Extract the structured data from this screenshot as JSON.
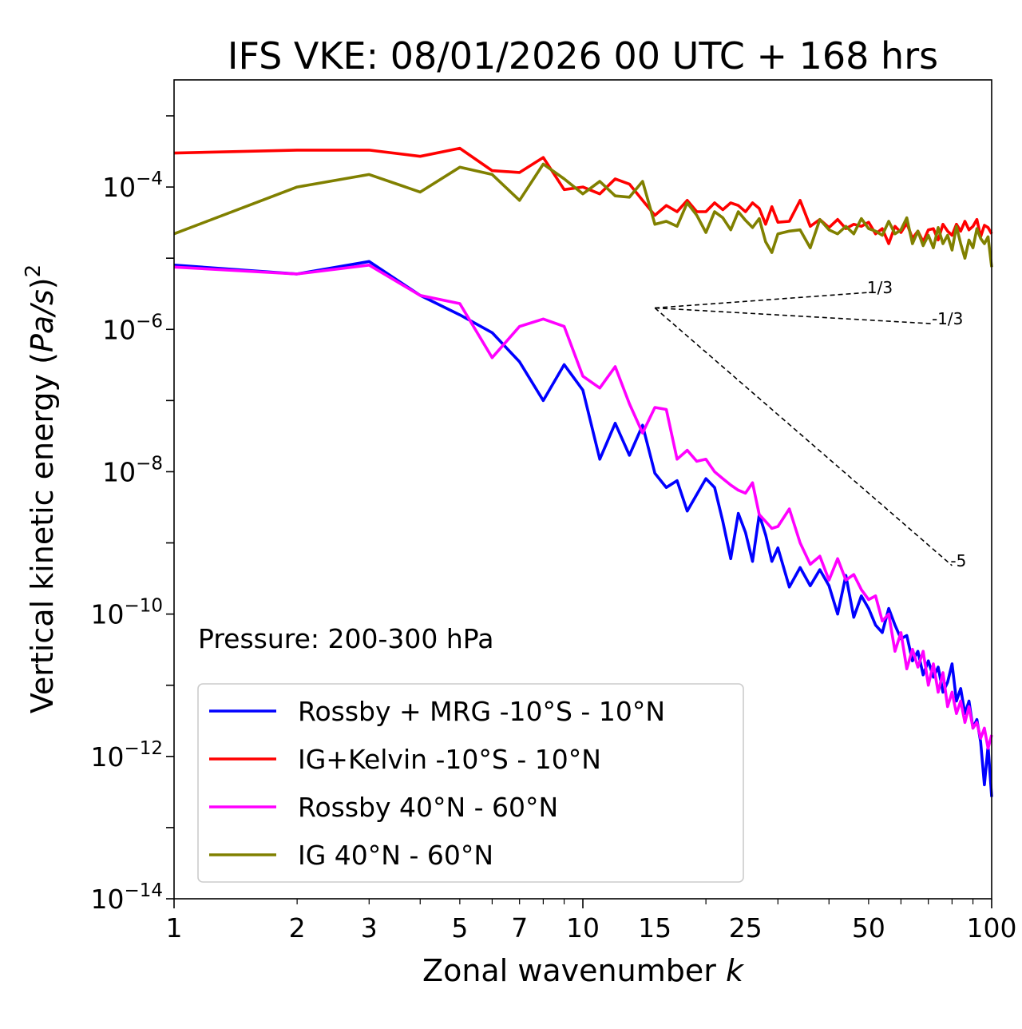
{
  "chart_data": {
    "type": "line",
    "title": "IFS VKE: 08/01/2026 00 UTC + 168 hrs",
    "xlabel_text": "Zonal wavenumber ",
    "xlabel_var": "k",
    "ylabel_text": "Vertical kinetic energy (",
    "ylabel_var": "Pa/s",
    "ylabel_close": ")",
    "ylabel_exp": "2",
    "xscale": "log",
    "yscale": "log",
    "xlim": [
      1,
      100
    ],
    "ylim": [
      1e-14,
      0.0032
    ],
    "x_ticks": [
      {
        "value": 1,
        "label": "1"
      },
      {
        "value": 2,
        "label": "2"
      },
      {
        "value": 3,
        "label": "3"
      },
      {
        "value": 5,
        "label": "5"
      },
      {
        "value": 7,
        "label": "7"
      },
      {
        "value": 10,
        "label": "10"
      },
      {
        "value": 15,
        "label": "15"
      },
      {
        "value": 25,
        "label": "25"
      },
      {
        "value": 50,
        "label": "50"
      },
      {
        "value": 100,
        "label": "100"
      }
    ],
    "y_ticks": [
      {
        "value": 0.0001,
        "base": "10",
        "exp": "−4"
      },
      {
        "value": 1e-06,
        "base": "10",
        "exp": "−6"
      },
      {
        "value": 1e-08,
        "base": "10",
        "exp": "−8"
      },
      {
        "value": 1e-10,
        "base": "10",
        "exp": "−10"
      },
      {
        "value": 1e-12,
        "base": "10",
        "exp": "−12"
      },
      {
        "value": 1e-14,
        "base": "10",
        "exp": "−14"
      }
    ],
    "annotation": "Pressure: 200-300 hPa",
    "legend_position": "lower-left",
    "series": [
      {
        "name": "Rossby + MRG -10°S - 10°N",
        "color": "#0000ff",
        "x": [
          1,
          2,
          3,
          4,
          5,
          6,
          7,
          8,
          9,
          10,
          11,
          12,
          13,
          14,
          15,
          16,
          17,
          18,
          19,
          20,
          21,
          22,
          23,
          24,
          25,
          26,
          27,
          28,
          29,
          30,
          32,
          34,
          36,
          38,
          40,
          42,
          44,
          46,
          48,
          50,
          52,
          54,
          56,
          58,
          60,
          62,
          64,
          66,
          68,
          70,
          72,
          74,
          76,
          78,
          80,
          82,
          84,
          86,
          88,
          90,
          92,
          94,
          96,
          98,
          100
        ],
        "y": [
          8e-06,
          6e-06,
          9e-06,
          3e-06,
          1.6e-06,
          9e-07,
          3.5e-07,
          1e-07,
          3.2e-07,
          1.4e-07,
          1.5e-08,
          4.8e-08,
          1.7e-08,
          4.5e-08,
          9.5e-09,
          6e-09,
          7.5e-09,
          2.8e-09,
          4.8e-09,
          8e-09,
          6e-09,
          2e-09,
          6e-10,
          2.6e-09,
          1.4e-09,
          5.5e-10,
          2.5e-09,
          1.3e-09,
          5.5e-10,
          8.5e-10,
          2.4e-10,
          4.5e-10,
          2.5e-10,
          4.2e-10,
          2.5e-10,
          1e-10,
          3.5e-10,
          9e-11,
          1.8e-10,
          1.2e-10,
          7e-11,
          5.5e-11,
          1.2e-10,
          7e-11,
          4.5e-11,
          5e-11,
          2.2e-11,
          3e-11,
          1.4e-11,
          2.2e-11,
          1.3e-11,
          1.8e-11,
          8e-12,
          1.1e-11,
          2e-11,
          6e-12,
          9e-12,
          4e-12,
          6e-12,
          2.5e-12,
          3.3e-12,
          1.6e-12,
          4e-13,
          1.4e-12,
          2.7e-13
        ]
      },
      {
        "name": "IG+Kelvin -10°S - 10°N",
        "color": "#ff0000",
        "x": [
          1,
          2,
          3,
          4,
          5,
          6,
          7,
          8,
          9,
          10,
          11,
          12,
          13,
          14,
          15,
          16,
          17,
          18,
          19,
          20,
          21,
          22,
          23,
          24,
          25,
          26,
          27,
          28,
          29,
          30,
          32,
          34,
          36,
          38,
          40,
          42,
          44,
          46,
          48,
          50,
          52,
          54,
          56,
          58,
          60,
          62,
          64,
          66,
          68,
          70,
          72,
          74,
          76,
          78,
          80,
          82,
          84,
          86,
          88,
          90,
          92,
          94,
          96,
          98,
          100
        ],
        "y": [
          0.0003,
          0.00033,
          0.00033,
          0.00027,
          0.00035,
          0.00017,
          0.00016,
          0.00026,
          9.2e-05,
          0.0001,
          8e-05,
          0.00013,
          0.00011,
          6.5e-05,
          4e-05,
          5.5e-05,
          4.5e-05,
          6.5e-05,
          4.5e-05,
          4.5e-05,
          6e-05,
          4.8e-05,
          6e-05,
          5.5e-05,
          4.5e-05,
          6e-05,
          5e-05,
          3e-05,
          5.3e-05,
          3.2e-05,
          3.3e-05,
          6.5e-05,
          2.8e-05,
          3.5e-05,
          2.7e-05,
          3.5e-05,
          2.6e-05,
          3e-05,
          2.8e-05,
          3.2e-05,
          2.2e-05,
          2.6e-05,
          1.6e-05,
          2.8e-05,
          2.3e-05,
          3.1e-05,
          1.9e-05,
          2.4e-05,
          1.7e-05,
          2.5e-05,
          2.6e-05,
          1.8e-05,
          3e-05,
          2.4e-05,
          2.1e-05,
          3e-05,
          2.4e-05,
          3.3e-05,
          2.5e-05,
          2.8e-05,
          3.5e-05,
          2e-05,
          2.9e-05,
          2.7e-05,
          2.2e-05
        ]
      },
      {
        "name": "Rossby 40°N - 60°N",
        "color": "#ff00ff",
        "x": [
          1,
          2,
          3,
          4,
          5,
          6,
          7,
          8,
          9,
          10,
          11,
          12,
          13,
          14,
          15,
          16,
          17,
          18,
          19,
          20,
          21,
          22,
          23,
          24,
          25,
          26,
          27,
          28,
          29,
          30,
          32,
          34,
          36,
          38,
          40,
          42,
          44,
          46,
          48,
          50,
          52,
          54,
          56,
          58,
          60,
          62,
          64,
          66,
          68,
          70,
          72,
          74,
          76,
          78,
          80,
          82,
          84,
          86,
          88,
          90,
          92,
          94,
          96,
          98,
          100
        ],
        "y": [
          7.5e-06,
          6e-06,
          8e-06,
          3e-06,
          2.3e-06,
          4e-07,
          1.1e-06,
          1.4e-06,
          1.1e-06,
          2.2e-07,
          1.5e-07,
          3e-07,
          9e-08,
          3.5e-08,
          8e-08,
          7.5e-08,
          1.5e-08,
          2e-08,
          1.4e-08,
          1.5e-08,
          1e-08,
          8e-09,
          6.5e-09,
          5.5e-09,
          5e-09,
          7e-09,
          2.5e-09,
          2e-09,
          1.6e-09,
          1.7e-09,
          3e-09,
          1e-09,
          5e-10,
          6.5e-10,
          3e-10,
          6e-10,
          3e-10,
          3.6e-10,
          2.2e-10,
          1.6e-10,
          1.8e-10,
          8e-11,
          1e-10,
          3e-11,
          5.5e-11,
          1.7e-11,
          3.2e-11,
          1.8e-11,
          3e-11,
          1e-11,
          2e-11,
          8e-12,
          1.5e-11,
          5e-12,
          8e-12,
          4e-12,
          6e-12,
          3e-12,
          5e-12,
          2.5e-12,
          3e-12,
          1.8e-12,
          2.5e-12,
          1.3e-12,
          2e-12
        ]
      },
      {
        "name": "IG 40°N - 60°N",
        "color": "#808000",
        "x": [
          1,
          2,
          3,
          4,
          5,
          6,
          7,
          8,
          9,
          10,
          11,
          12,
          13,
          14,
          15,
          16,
          17,
          18,
          19,
          20,
          21,
          22,
          23,
          24,
          25,
          26,
          27,
          28,
          29,
          30,
          32,
          34,
          36,
          38,
          40,
          42,
          44,
          46,
          48,
          50,
          52,
          54,
          56,
          58,
          60,
          62,
          64,
          66,
          68,
          70,
          72,
          74,
          76,
          78,
          80,
          82,
          84,
          86,
          88,
          90,
          92,
          94,
          96,
          98,
          100
        ],
        "y": [
          2.2e-05,
          0.0001,
          0.00015,
          8.5e-05,
          0.00019,
          0.00015,
          6.5e-05,
          0.00021,
          0.00013,
          8e-05,
          0.00012,
          7.5e-05,
          7.2e-05,
          0.00012,
          3e-05,
          3.3e-05,
          2.8e-05,
          6e-05,
          4e-05,
          2.3e-05,
          4.5e-05,
          3.7e-05,
          2.5e-05,
          4.5e-05,
          3.4e-05,
          2.7e-05,
          3.6e-05,
          1.7e-05,
          1.2e-05,
          2.2e-05,
          2.4e-05,
          2.5e-05,
          1.4e-05,
          3.5e-05,
          2.5e-05,
          2.2e-05,
          2.8e-05,
          2.2e-05,
          3.6e-05,
          2.6e-05,
          2.4e-05,
          2.1e-05,
          3.3e-05,
          2.2e-05,
          2.5e-05,
          3.7e-05,
          1.6e-05,
          2.4e-05,
          1.5e-05,
          2.1e-05,
          1.4e-05,
          2.7e-05,
          1.6e-05,
          2.1e-05,
          1.3e-05,
          2.8e-05,
          1.6e-05,
          1e-05,
          1.8e-05,
          1.4e-05,
          2.6e-05,
          1.9e-05,
          1.6e-05,
          2e-05,
          7.5e-06
        ]
      }
    ],
    "reference_lines": [
      {
        "label": "1/3",
        "x": [
          15,
          50
        ],
        "y": [
          2e-06,
          3.3e-06
        ]
      },
      {
        "label": "-1/3",
        "x": [
          15,
          72
        ],
        "y": [
          2e-06,
          1.2e-06
        ]
      },
      {
        "label": "-5",
        "x": [
          15,
          80
        ],
        "y": [
          2e-06,
          4.8e-10
        ]
      }
    ]
  }
}
